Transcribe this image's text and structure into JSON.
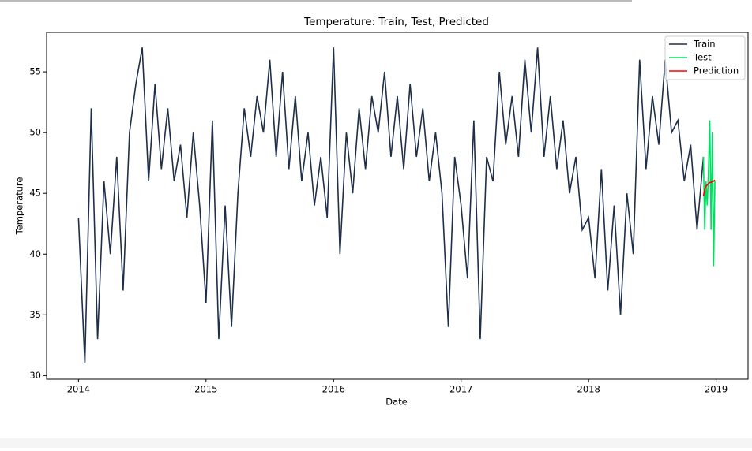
{
  "chart_data": {
    "type": "line",
    "title": "Temperature: Train, Test, Predicted",
    "xlabel": "Date",
    "ylabel": "Temperature",
    "xlim": [
      2013.75,
      2019.25
    ],
    "xticks": [
      2014,
      2015,
      2016,
      2017,
      2018,
      2019
    ],
    "ylim": [
      29.7,
      58.25
    ],
    "yticks": [
      30,
      35,
      40,
      45,
      50,
      55
    ],
    "grid": false,
    "legend": "upper right",
    "series": [
      {
        "name": "Train",
        "color": "#1f2f4a",
        "x": [
          2014.0,
          2014.05,
          2014.1,
          2014.15,
          2014.2,
          2014.25,
          2014.3,
          2014.35,
          2014.4,
          2014.45,
          2014.5,
          2014.55,
          2014.6,
          2014.65,
          2014.7,
          2014.75,
          2014.8,
          2014.85,
          2014.9,
          2014.95,
          2015.0,
          2015.05,
          2015.1,
          2015.15,
          2015.2,
          2015.25,
          2015.3,
          2015.35,
          2015.4,
          2015.45,
          2015.5,
          2015.55,
          2015.6,
          2015.65,
          2015.7,
          2015.75,
          2015.8,
          2015.85,
          2015.9,
          2015.95,
          2016.0,
          2016.05,
          2016.1,
          2016.15,
          2016.2,
          2016.25,
          2016.3,
          2016.35,
          2016.4,
          2016.45,
          2016.5,
          2016.55,
          2016.6,
          2016.65,
          2016.7,
          2016.75,
          2016.8,
          2016.85,
          2016.9,
          2016.95,
          2017.0,
          2017.05,
          2017.1,
          2017.15,
          2017.2,
          2017.25,
          2017.3,
          2017.35,
          2017.4,
          2017.45,
          2017.5,
          2017.55,
          2017.6,
          2017.65,
          2017.7,
          2017.75,
          2017.8,
          2017.85,
          2017.9,
          2017.95,
          2018.0,
          2018.05,
          2018.1,
          2018.15,
          2018.2,
          2018.25,
          2018.3,
          2018.35,
          2018.4,
          2018.45,
          2018.5,
          2018.55,
          2018.6,
          2018.65,
          2018.7,
          2018.75,
          2018.8,
          2018.85,
          2018.9
        ],
        "values": [
          43,
          31,
          52,
          33,
          46,
          40,
          48,
          37,
          50,
          54,
          57,
          46,
          54,
          47,
          52,
          46,
          49,
          43,
          50,
          44,
          36,
          51,
          33,
          44,
          34,
          45,
          52,
          48,
          53,
          50,
          56,
          48,
          55,
          47,
          53,
          46,
          50,
          44,
          48,
          43,
          57,
          40,
          50,
          45,
          52,
          47,
          53,
          50,
          55,
          48,
          53,
          47,
          54,
          48,
          52,
          46,
          50,
          45,
          34,
          48,
          44,
          38,
          51,
          33,
          48,
          46,
          55,
          49,
          53,
          48,
          56,
          50,
          57,
          48,
          53,
          47,
          51,
          45,
          48,
          42,
          43,
          38,
          47,
          37,
          44,
          35,
          45,
          40,
          56,
          47,
          53,
          49,
          56,
          50,
          51,
          46,
          49,
          42,
          48
        ]
      },
      {
        "name": "Test",
        "color": "#00e060",
        "x": [
          2018.9,
          2018.91,
          2018.92,
          2018.93,
          2018.94,
          2018.95,
          2018.96,
          2018.97,
          2018.98,
          2018.99
        ],
        "values": [
          48,
          42,
          46,
          44,
          47,
          51,
          42,
          50,
          39,
          46
        ]
      },
      {
        "name": "Prediction",
        "color": "#ff0000",
        "x": [
          2018.9,
          2018.91,
          2018.92,
          2018.93,
          2018.94,
          2018.95,
          2018.96,
          2018.97,
          2018.98,
          2018.99
        ],
        "values": [
          44.8,
          45.3,
          45.6,
          45.7,
          45.8,
          45.9,
          45.9,
          46,
          46,
          46.1
        ]
      }
    ]
  }
}
